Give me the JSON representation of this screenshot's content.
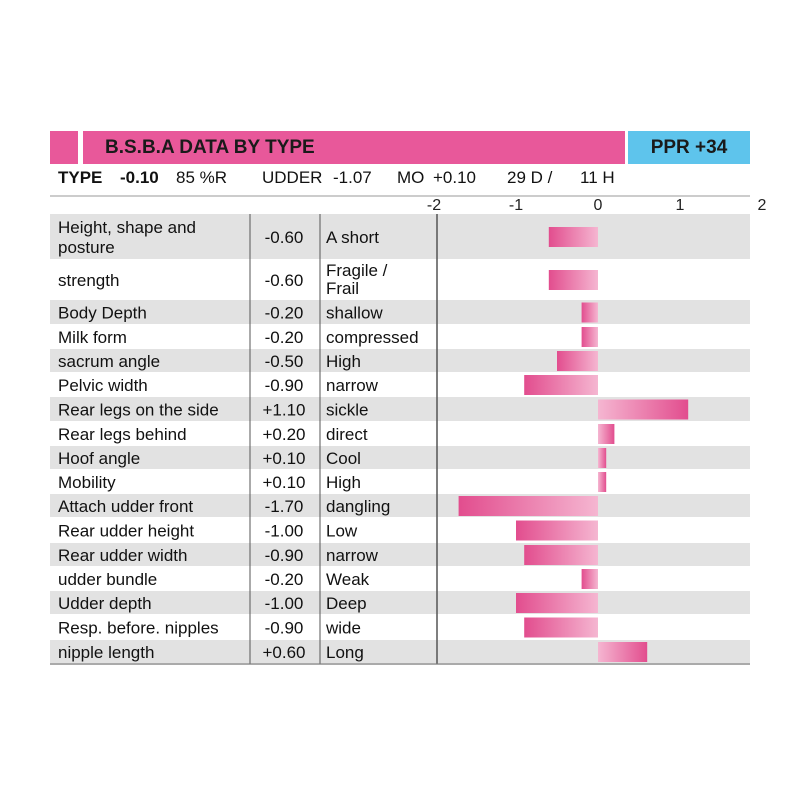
{
  "header": {
    "title": "B.S.B.A DATA BY TYPE",
    "badge": "PPR +34"
  },
  "info": {
    "type_label": "TYPE",
    "type_value": "-0.10",
    "reliability": "85 %R",
    "udder_label": "UDDER",
    "udder_value": "-1.07",
    "mo_label": "MO",
    "mo_value": "+0.10",
    "daughters": "29 D /",
    "herds": "11 H"
  },
  "colors": {
    "title_bar": "#e8589a",
    "badge": "#5ec4ec",
    "row_stripe": "#e2e2e2",
    "bar_dark": "#e24d8e",
    "bar_light": "#f5b6d1",
    "divider": "#555555"
  },
  "chart_data": {
    "type": "bar",
    "orientation": "horizontal",
    "xlim": [
      -2,
      2
    ],
    "ticks": [
      "-2",
      "-1",
      "0",
      "1",
      "2"
    ],
    "rows": [
      {
        "trait": [
          "Height, shape and",
          "posture"
        ],
        "value_text": "-0.60",
        "desc": [
          "A short"
        ],
        "value": -0.6
      },
      {
        "trait": [
          "strength"
        ],
        "value_text": "-0.60",
        "desc": [
          "Fragile /",
          "Frail"
        ],
        "value": -0.6
      },
      {
        "trait": [
          "Body Depth"
        ],
        "value_text": "-0.20",
        "desc": [
          "shallow"
        ],
        "value": -0.2
      },
      {
        "trait": [
          "Milk form"
        ],
        "value_text": "-0.20",
        "desc": [
          "compressed"
        ],
        "value": -0.2
      },
      {
        "trait": [
          "sacrum angle"
        ],
        "value_text": "-0.50",
        "desc": [
          "High"
        ],
        "value": -0.5
      },
      {
        "trait": [
          "Pelvic width"
        ],
        "value_text": "-0.90",
        "desc": [
          "narrow"
        ],
        "value": -0.9
      },
      {
        "trait": [
          "Rear legs on the side"
        ],
        "value_text": "+1.10",
        "desc": [
          "sickle"
        ],
        "value": 1.1
      },
      {
        "trait": [
          "Rear legs behind"
        ],
        "value_text": "+0.20",
        "desc": [
          "direct"
        ],
        "value": 0.2
      },
      {
        "trait": [
          "Hoof angle"
        ],
        "value_text": "+0.10",
        "desc": [
          "Cool"
        ],
        "value": 0.1
      },
      {
        "trait": [
          "Mobility"
        ],
        "value_text": "+0.10",
        "desc": [
          "High"
        ],
        "value": 0.1
      },
      {
        "trait": [
          "Attach udder front"
        ],
        "value_text": "-1.70",
        "desc": [
          "dangling"
        ],
        "value": -1.7
      },
      {
        "trait": [
          "Rear udder height"
        ],
        "value_text": "-1.00",
        "desc": [
          "Low"
        ],
        "value": -1.0
      },
      {
        "trait": [
          "Rear udder width"
        ],
        "value_text": "-0.90",
        "desc": [
          "narrow"
        ],
        "value": -0.9
      },
      {
        "trait": [
          "udder bundle"
        ],
        "value_text": "-0.20",
        "desc": [
          "Weak"
        ],
        "value": -0.2
      },
      {
        "trait": [
          "Udder depth"
        ],
        "value_text": "-1.00",
        "desc": [
          "Deep"
        ],
        "value": -1.0
      },
      {
        "trait": [
          "Resp. before. nipples"
        ],
        "value_text": "-0.90",
        "desc": [
          "wide"
        ],
        "value": -0.9
      },
      {
        "trait": [
          "nipple length"
        ],
        "value_text": "+0.60",
        "desc": [
          "Long"
        ],
        "value": 0.6
      }
    ]
  }
}
